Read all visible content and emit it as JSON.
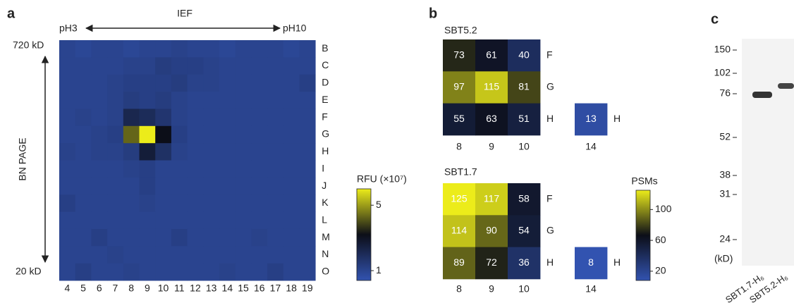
{
  "panel_labels": [
    "a",
    "b",
    "c"
  ],
  "chart_data": [
    {
      "type": "heatmap",
      "x_label": "IEF",
      "x_start_label": "pH3",
      "x_end_label": "pH10",
      "y_label": "BN PAGE",
      "y_start_label": "720 kD",
      "y_end_label": "20 kD",
      "columns": [
        4,
        5,
        6,
        7,
        8,
        9,
        10,
        11,
        12,
        13,
        14,
        15,
        16,
        17,
        18,
        19
      ],
      "rows": [
        "B",
        "C",
        "D",
        "E",
        "F",
        "G",
        "H",
        "I",
        "J",
        "K",
        "L",
        "M",
        "N",
        "O"
      ],
      "values": [
        [
          1.0,
          0.9,
          1.0,
          1.0,
          0.9,
          1.0,
          1.0,
          1.1,
          1.0,
          1.0,
          0.9,
          1.0,
          1.0,
          1.0,
          0.9,
          1.0
        ],
        [
          1.0,
          1.0,
          1.0,
          1.0,
          1.1,
          1.1,
          1.3,
          1.2,
          1.2,
          1.1,
          1.0,
          1.0,
          1.0,
          1.0,
          1.0,
          1.0
        ],
        [
          1.0,
          1.0,
          1.0,
          1.1,
          1.2,
          1.2,
          1.2,
          1.3,
          1.1,
          1.1,
          1.0,
          1.0,
          1.0,
          1.0,
          1.0,
          1.2
        ],
        [
          1.0,
          1.0,
          1.0,
          1.1,
          1.3,
          1.2,
          1.3,
          1.1,
          1.0,
          1.0,
          1.0,
          1.0,
          1.0,
          1.0,
          1.0,
          1.0
        ],
        [
          1.0,
          1.1,
          1.0,
          1.1,
          2.2,
          2.0,
          1.6,
          1.1,
          1.0,
          1.0,
          1.0,
          1.0,
          1.0,
          1.0,
          1.0,
          1.0
        ],
        [
          1.0,
          1.0,
          1.1,
          1.2,
          4.3,
          6.0,
          3.2,
          1.2,
          1.0,
          1.0,
          1.0,
          1.0,
          1.0,
          1.0,
          1.0,
          1.0
        ],
        [
          1.1,
          1.0,
          1.1,
          1.1,
          1.3,
          2.6,
          1.8,
          1.1,
          1.0,
          1.0,
          1.0,
          1.0,
          1.0,
          1.0,
          1.0,
          1.0
        ],
        [
          1.0,
          1.0,
          1.0,
          1.0,
          1.1,
          1.2,
          1.0,
          1.0,
          1.0,
          1.0,
          1.0,
          1.0,
          1.0,
          1.0,
          1.0,
          1.0
        ],
        [
          1.0,
          1.0,
          1.0,
          1.0,
          1.0,
          1.2,
          1.0,
          1.0,
          1.0,
          1.0,
          1.0,
          1.0,
          1.0,
          1.0,
          1.0,
          1.0
        ],
        [
          1.2,
          1.0,
          1.0,
          1.0,
          1.0,
          1.1,
          1.0,
          1.0,
          1.0,
          1.0,
          1.0,
          1.0,
          1.0,
          1.0,
          1.0,
          1.0
        ],
        [
          1.0,
          1.0,
          1.0,
          1.0,
          1.0,
          1.0,
          1.0,
          1.0,
          1.0,
          1.0,
          1.0,
          1.0,
          1.0,
          1.0,
          1.0,
          1.0
        ],
        [
          1.0,
          1.0,
          1.2,
          1.0,
          1.0,
          1.0,
          1.0,
          1.2,
          1.0,
          1.0,
          1.0,
          1.0,
          1.1,
          1.0,
          1.0,
          1.0
        ],
        [
          1.0,
          1.0,
          1.0,
          1.1,
          1.0,
          1.0,
          1.0,
          1.0,
          1.0,
          1.0,
          1.0,
          1.0,
          1.0,
          1.0,
          1.0,
          1.0
        ],
        [
          1.0,
          1.2,
          1.0,
          1.0,
          1.1,
          1.0,
          1.0,
          1.0,
          1.0,
          1.0,
          1.1,
          1.0,
          1.0,
          1.2,
          1.0,
          1.0
        ]
      ],
      "colormap": [
        "#3253b0",
        "#0c0e18",
        "#ecec1a"
      ],
      "clim": [
        0.4,
        6.0
      ],
      "colorbar_title": "RFU (×10⁷)",
      "cticks": [
        1,
        5
      ]
    },
    {
      "type": "heatmap",
      "title": "SBT5.2",
      "columns": [
        8,
        9,
        10,
        14
      ],
      "rows": [
        "F",
        "G",
        "H"
      ],
      "values": [
        [
          73,
          61,
          40,
          null
        ],
        [
          97,
          115,
          81,
          null
        ],
        [
          55,
          63,
          51,
          13
        ]
      ],
      "colormap": [
        "#3253b0",
        "#0c0e18",
        "#ecec1a"
      ],
      "clim": [
        8,
        125
      ]
    },
    {
      "type": "heatmap",
      "title": "SBT1.7",
      "columns": [
        8,
        9,
        10,
        14
      ],
      "rows": [
        "F",
        "G",
        "H"
      ],
      "values": [
        [
          125,
          117,
          58,
          null
        ],
        [
          114,
          90,
          54,
          null
        ],
        [
          89,
          72,
          36,
          8
        ]
      ],
      "colormap": [
        "#3253b0",
        "#0c0e18",
        "#ecec1a"
      ],
      "clim": [
        8,
        125
      ],
      "colorbar_title": "PSMs",
      "cticks": [
        20,
        60,
        100
      ]
    }
  ],
  "gel": {
    "ladder": [
      150,
      102,
      76,
      52,
      38,
      31,
      24
    ],
    "unit_label": "(kD)",
    "lanes": [
      "SBT1.7-H₆",
      "SBT5.2-H₆"
    ]
  }
}
